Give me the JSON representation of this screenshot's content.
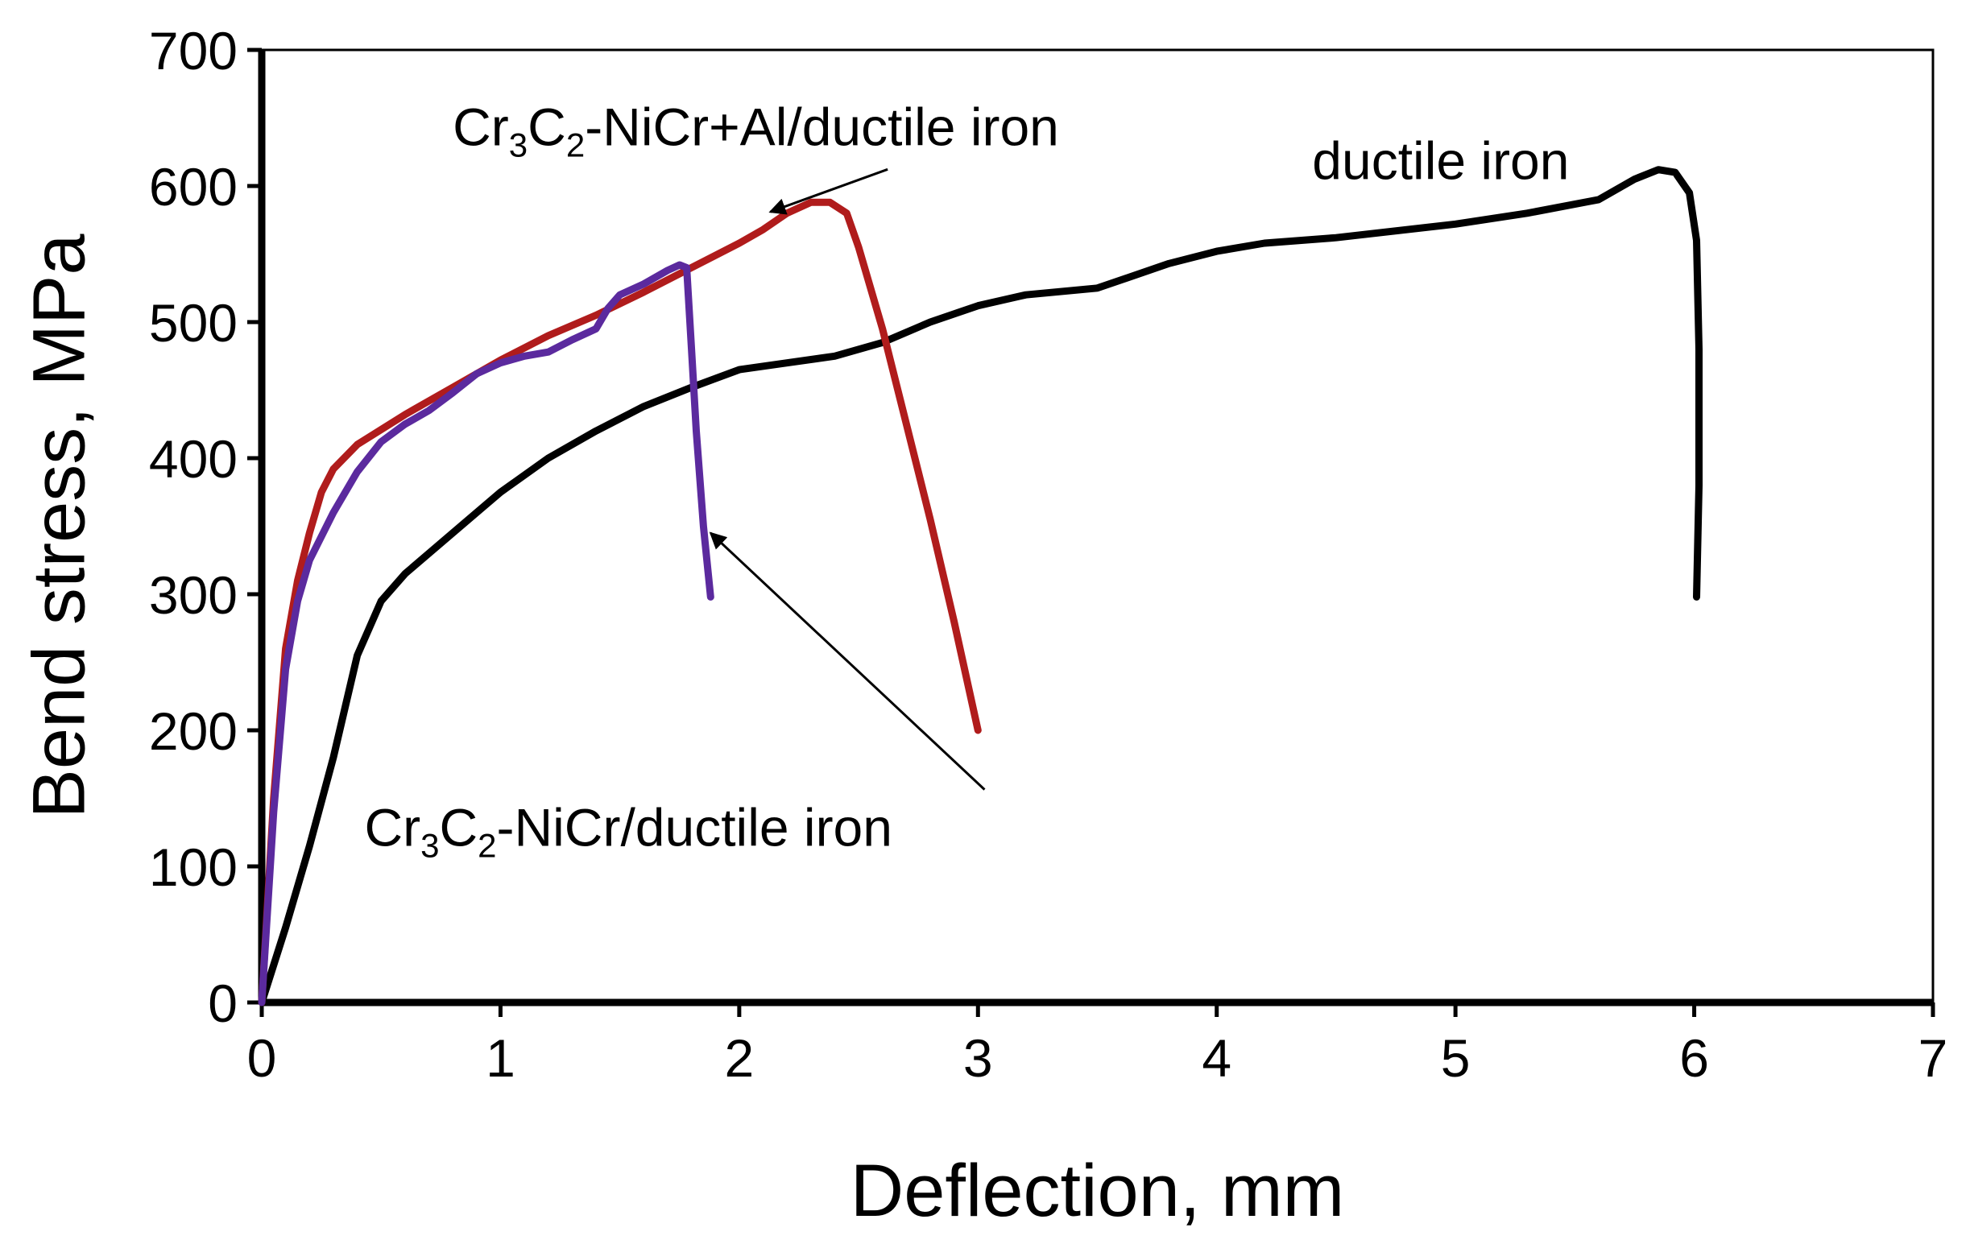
{
  "chart_data": {
    "type": "line",
    "title": "",
    "xlabel": "Deflection, mm",
    "ylabel": "Bend stress, MPa",
    "xlim": [
      0,
      7
    ],
    "ylim": [
      0,
      700
    ],
    "x_ticks": [
      "0",
      "1",
      "2",
      "3",
      "4",
      "5",
      "6",
      "7"
    ],
    "y_ticks": [
      "0",
      "100",
      "200",
      "300",
      "400",
      "500",
      "600",
      "700"
    ],
    "grid": false,
    "legend": "none",
    "series": [
      {
        "name": "ductile iron",
        "color": "#000000",
        "x": [
          0,
          0.1,
          0.2,
          0.3,
          0.4,
          0.5,
          0.6,
          0.8,
          1.0,
          1.2,
          1.4,
          1.6,
          1.8,
          2.0,
          2.2,
          2.4,
          2.6,
          2.8,
          3.0,
          3.2,
          3.5,
          3.8,
          4.0,
          4.2,
          4.5,
          5.0,
          5.3,
          5.6,
          5.75,
          5.85,
          5.92,
          5.98,
          6.01,
          6.02,
          6.02,
          6.01
        ],
        "y": [
          0,
          55,
          115,
          180,
          255,
          295,
          315,
          345,
          375,
          400,
          420,
          438,
          452,
          465,
          470,
          475,
          485,
          500,
          512,
          520,
          525,
          543,
          552,
          558,
          562,
          572,
          580,
          590,
          605,
          612,
          610,
          595,
          560,
          480,
          380,
          298
        ]
      },
      {
        "name": "Cr3C2-NiCr+Al/ductile iron",
        "color": "#b01c1c",
        "x": [
          0,
          0.05,
          0.1,
          0.15,
          0.2,
          0.25,
          0.3,
          0.4,
          0.6,
          0.8,
          1.0,
          1.2,
          1.4,
          1.6,
          1.8,
          2.0,
          2.1,
          2.2,
          2.3,
          2.38,
          2.45,
          2.5,
          2.6,
          2.7,
          2.8,
          2.9,
          3.0
        ],
        "y": [
          0,
          150,
          260,
          310,
          345,
          375,
          392,
          410,
          432,
          452,
          472,
          490,
          505,
          522,
          540,
          558,
          568,
          580,
          588,
          588,
          580,
          555,
          495,
          425,
          355,
          280,
          200
        ]
      },
      {
        "name": "Cr3C2-NiCr/ductile iron",
        "color": "#5b2a9e",
        "x": [
          0,
          0.05,
          0.1,
          0.15,
          0.2,
          0.3,
          0.4,
          0.5,
          0.6,
          0.7,
          0.8,
          0.9,
          1.0,
          1.1,
          1.2,
          1.3,
          1.4,
          1.45,
          1.5,
          1.6,
          1.7,
          1.75,
          1.78,
          1.8,
          1.82,
          1.85,
          1.88
        ],
        "y": [
          0,
          140,
          245,
          295,
          325,
          360,
          390,
          412,
          425,
          435,
          448,
          462,
          470,
          475,
          478,
          487,
          495,
          510,
          520,
          528,
          538,
          542,
          540,
          480,
          420,
          350,
          298
        ]
      }
    ],
    "annotations": [
      {
        "text_parts": [
          "Cr",
          "3",
          "C",
          "2",
          "-NiCr+Al/ductile iron"
        ],
        "label": "Cr3C2-NiCr+Al/ductile iron",
        "anchor": [
          0.8,
          630
        ],
        "arrow_target": [
          2.13,
          581
        ]
      },
      {
        "text_parts": [
          "Cr",
          "3",
          "C",
          "2",
          "-NiCr/ductile iron"
        ],
        "label": "Cr3C2-NiCr/ductile iron",
        "anchor": [
          0.43,
          115
        ],
        "arrow_target": [
          1.88,
          345
        ]
      },
      {
        "text_parts": [
          "ductile iron"
        ],
        "label": "ductile iron",
        "anchor": [
          4.4,
          605
        ],
        "arrow_target": null
      }
    ]
  }
}
